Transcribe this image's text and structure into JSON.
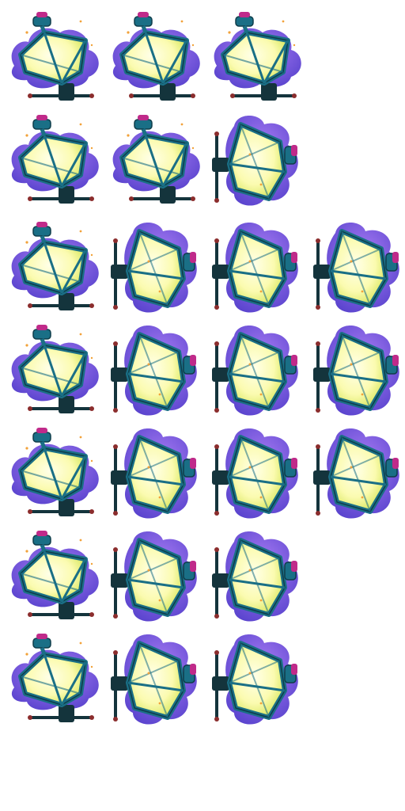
{
  "sprite_sheet": {
    "sprite_name": "street-lamp",
    "colors": {
      "cloud": "#6f46e0",
      "cloud_light": "#9b6cf2",
      "frame": "#1a6f86",
      "frame_edge": "#0f3d4a",
      "glass_core": "#ffffd6",
      "glass_glow": "#e9f25a",
      "cap": "#c02a8a",
      "bar": "#14343c",
      "knob": "#8b2d2d",
      "spark": "#f2a23a"
    },
    "rows": [
      {
        "frames": [
          "tilt-left",
          "tilt-left",
          "tilt-left"
        ]
      },
      {
        "frames": [
          "tilt-left",
          "tilt-left",
          "side-right"
        ]
      },
      {
        "frames": [
          "tilt-left",
          "side-right",
          "side-right",
          "side-right"
        ]
      },
      {
        "frames": [
          "tilt-left",
          "side-right",
          "side-right",
          "side-right"
        ]
      },
      {
        "frames": [
          "tilt-left",
          "side-right",
          "side-right",
          "side-right"
        ]
      },
      {
        "frames": [
          "tilt-left",
          "side-right",
          "side-right"
        ]
      },
      {
        "frames": [
          "tilt-left",
          "side-right",
          "side-right"
        ]
      }
    ]
  }
}
